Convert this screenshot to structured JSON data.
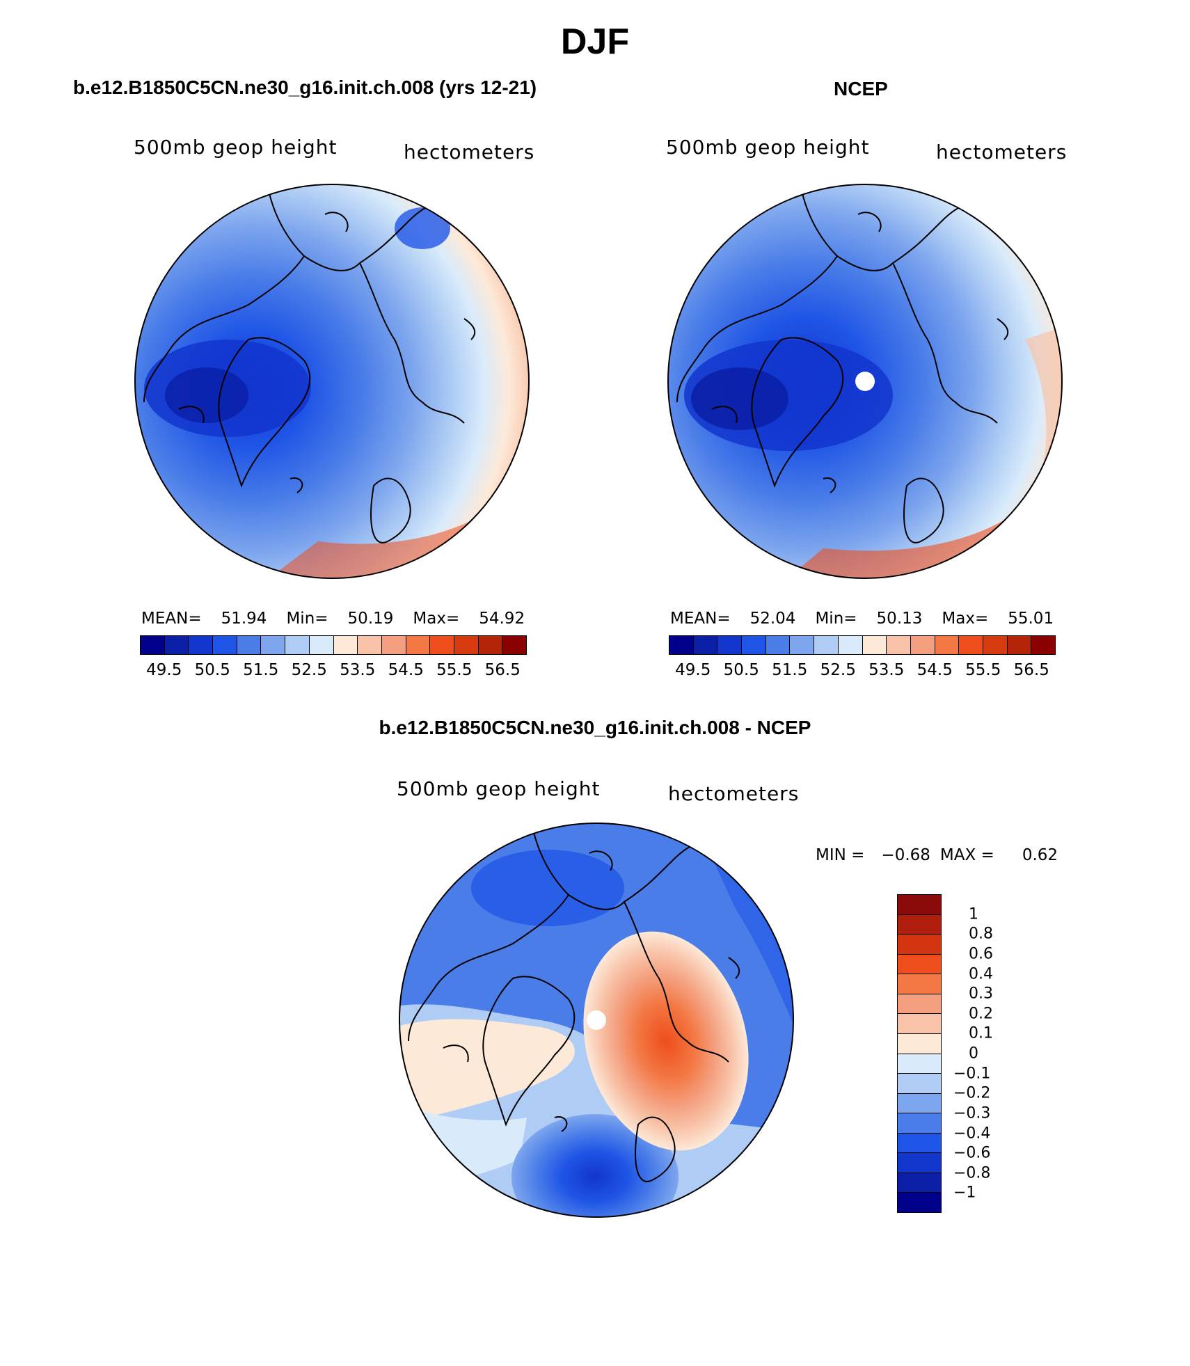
{
  "figure": {
    "title": "DJF"
  },
  "panels": {
    "model": {
      "title": "b.e12.B1850C5CN.ne30_g16.init.ch.008 (yrs 12-21)",
      "variable": "500mb geop height",
      "units": "hectometers",
      "stats": {
        "mean_label": "MEAN=",
        "mean": "51.94",
        "min_label": "Min=",
        "min": "50.19",
        "max_label": "Max=",
        "max": "54.92"
      }
    },
    "obs": {
      "title": "NCEP",
      "variable": "500mb geop height",
      "units": "hectometers",
      "stats": {
        "mean_label": "MEAN=",
        "mean": "52.04",
        "min_label": "Min=",
        "min": "50.13",
        "max_label": "Max=",
        "max": "55.01"
      }
    },
    "diff": {
      "title": "b.e12.B1850C5CN.ne30_g16.init.ch.008 - NCEP",
      "variable": "500mb geop height",
      "units": "hectometers",
      "stats": {
        "min_label": "MIN =",
        "min": "−0.68",
        "max_label": "MAX =",
        "max": "0.62"
      }
    }
  },
  "colorbars": {
    "height": {
      "colors": [
        "#00008b",
        "#0a1fa6",
        "#1235cc",
        "#1f55e6",
        "#4a7de8",
        "#7ea6ee",
        "#aeccf4",
        "#d9ebfb",
        "#fde9d8",
        "#f8c3a8",
        "#f4a080",
        "#f37844",
        "#ee4d1c",
        "#d83a10",
        "#b32408",
        "#8b0000"
      ],
      "labels": [
        "49.5",
        "50.5",
        "51.5",
        "52.5",
        "53.5",
        "54.5",
        "55.5",
        "56.5"
      ]
    },
    "diff": {
      "colors_top_to_bottom": [
        "#8b0a0a",
        "#b01e0e",
        "#d33510",
        "#ee4d1c",
        "#f37844",
        "#f4a080",
        "#f8c3a8",
        "#fde9d8",
        "#d9ebfb",
        "#aeccf4",
        "#7ea6ee",
        "#4a7de8",
        "#1f55e6",
        "#1235cc",
        "#0a1fa6",
        "#00008b"
      ],
      "labels": [
        "1",
        "0.8",
        "0.6",
        "0.4",
        "0.3",
        "0.2",
        "0.1",
        "0",
        "−0.1",
        "−0.2",
        "−0.3",
        "−0.4",
        "−0.6",
        "−0.8",
        "−1"
      ]
    }
  },
  "chart_data": [
    {
      "type": "heatmap",
      "title": "b.e12.B1850C5CN.ne30_g16.init.ch.008 (yrs 12-21)",
      "projection": "north polar stereographic",
      "field": "500mb geop height (hectometers), DJF",
      "stats": {
        "mean": 51.94,
        "min": 50.19,
        "max": 54.92
      },
      "contour_levels": [
        49.5,
        50.0,
        50.5,
        51.0,
        51.5,
        52.0,
        52.5,
        53.0,
        53.5,
        54.0,
        54.5,
        55.0,
        55.5,
        56.0,
        56.5
      ],
      "colorbar_ticks": [
        49.5,
        50.5,
        51.5,
        52.5,
        53.5,
        54.5,
        55.5,
        56.5
      ]
    },
    {
      "type": "heatmap",
      "title": "NCEP",
      "projection": "north polar stereographic",
      "field": "500mb geop height (hectometers), DJF",
      "stats": {
        "mean": 52.04,
        "min": 50.13,
        "max": 55.01
      },
      "contour_levels": [
        49.5,
        50.0,
        50.5,
        51.0,
        51.5,
        52.0,
        52.5,
        53.0,
        53.5,
        54.0,
        54.5,
        55.0,
        55.5,
        56.0,
        56.5
      ],
      "colorbar_ticks": [
        49.5,
        50.5,
        51.5,
        52.5,
        53.5,
        54.5,
        55.5,
        56.5
      ]
    },
    {
      "type": "heatmap",
      "title": "b.e12.B1850C5CN.ne30_g16.init.ch.008 - NCEP",
      "projection": "north polar stereographic",
      "field": "500mb geop height difference (hectometers), DJF",
      "stats": {
        "min": -0.68,
        "max": 0.62
      },
      "contour_levels": [
        -1,
        -0.8,
        -0.6,
        -0.4,
        -0.3,
        -0.2,
        -0.1,
        0,
        0.1,
        0.2,
        0.3,
        0.4,
        0.6,
        0.8,
        1
      ]
    }
  ]
}
